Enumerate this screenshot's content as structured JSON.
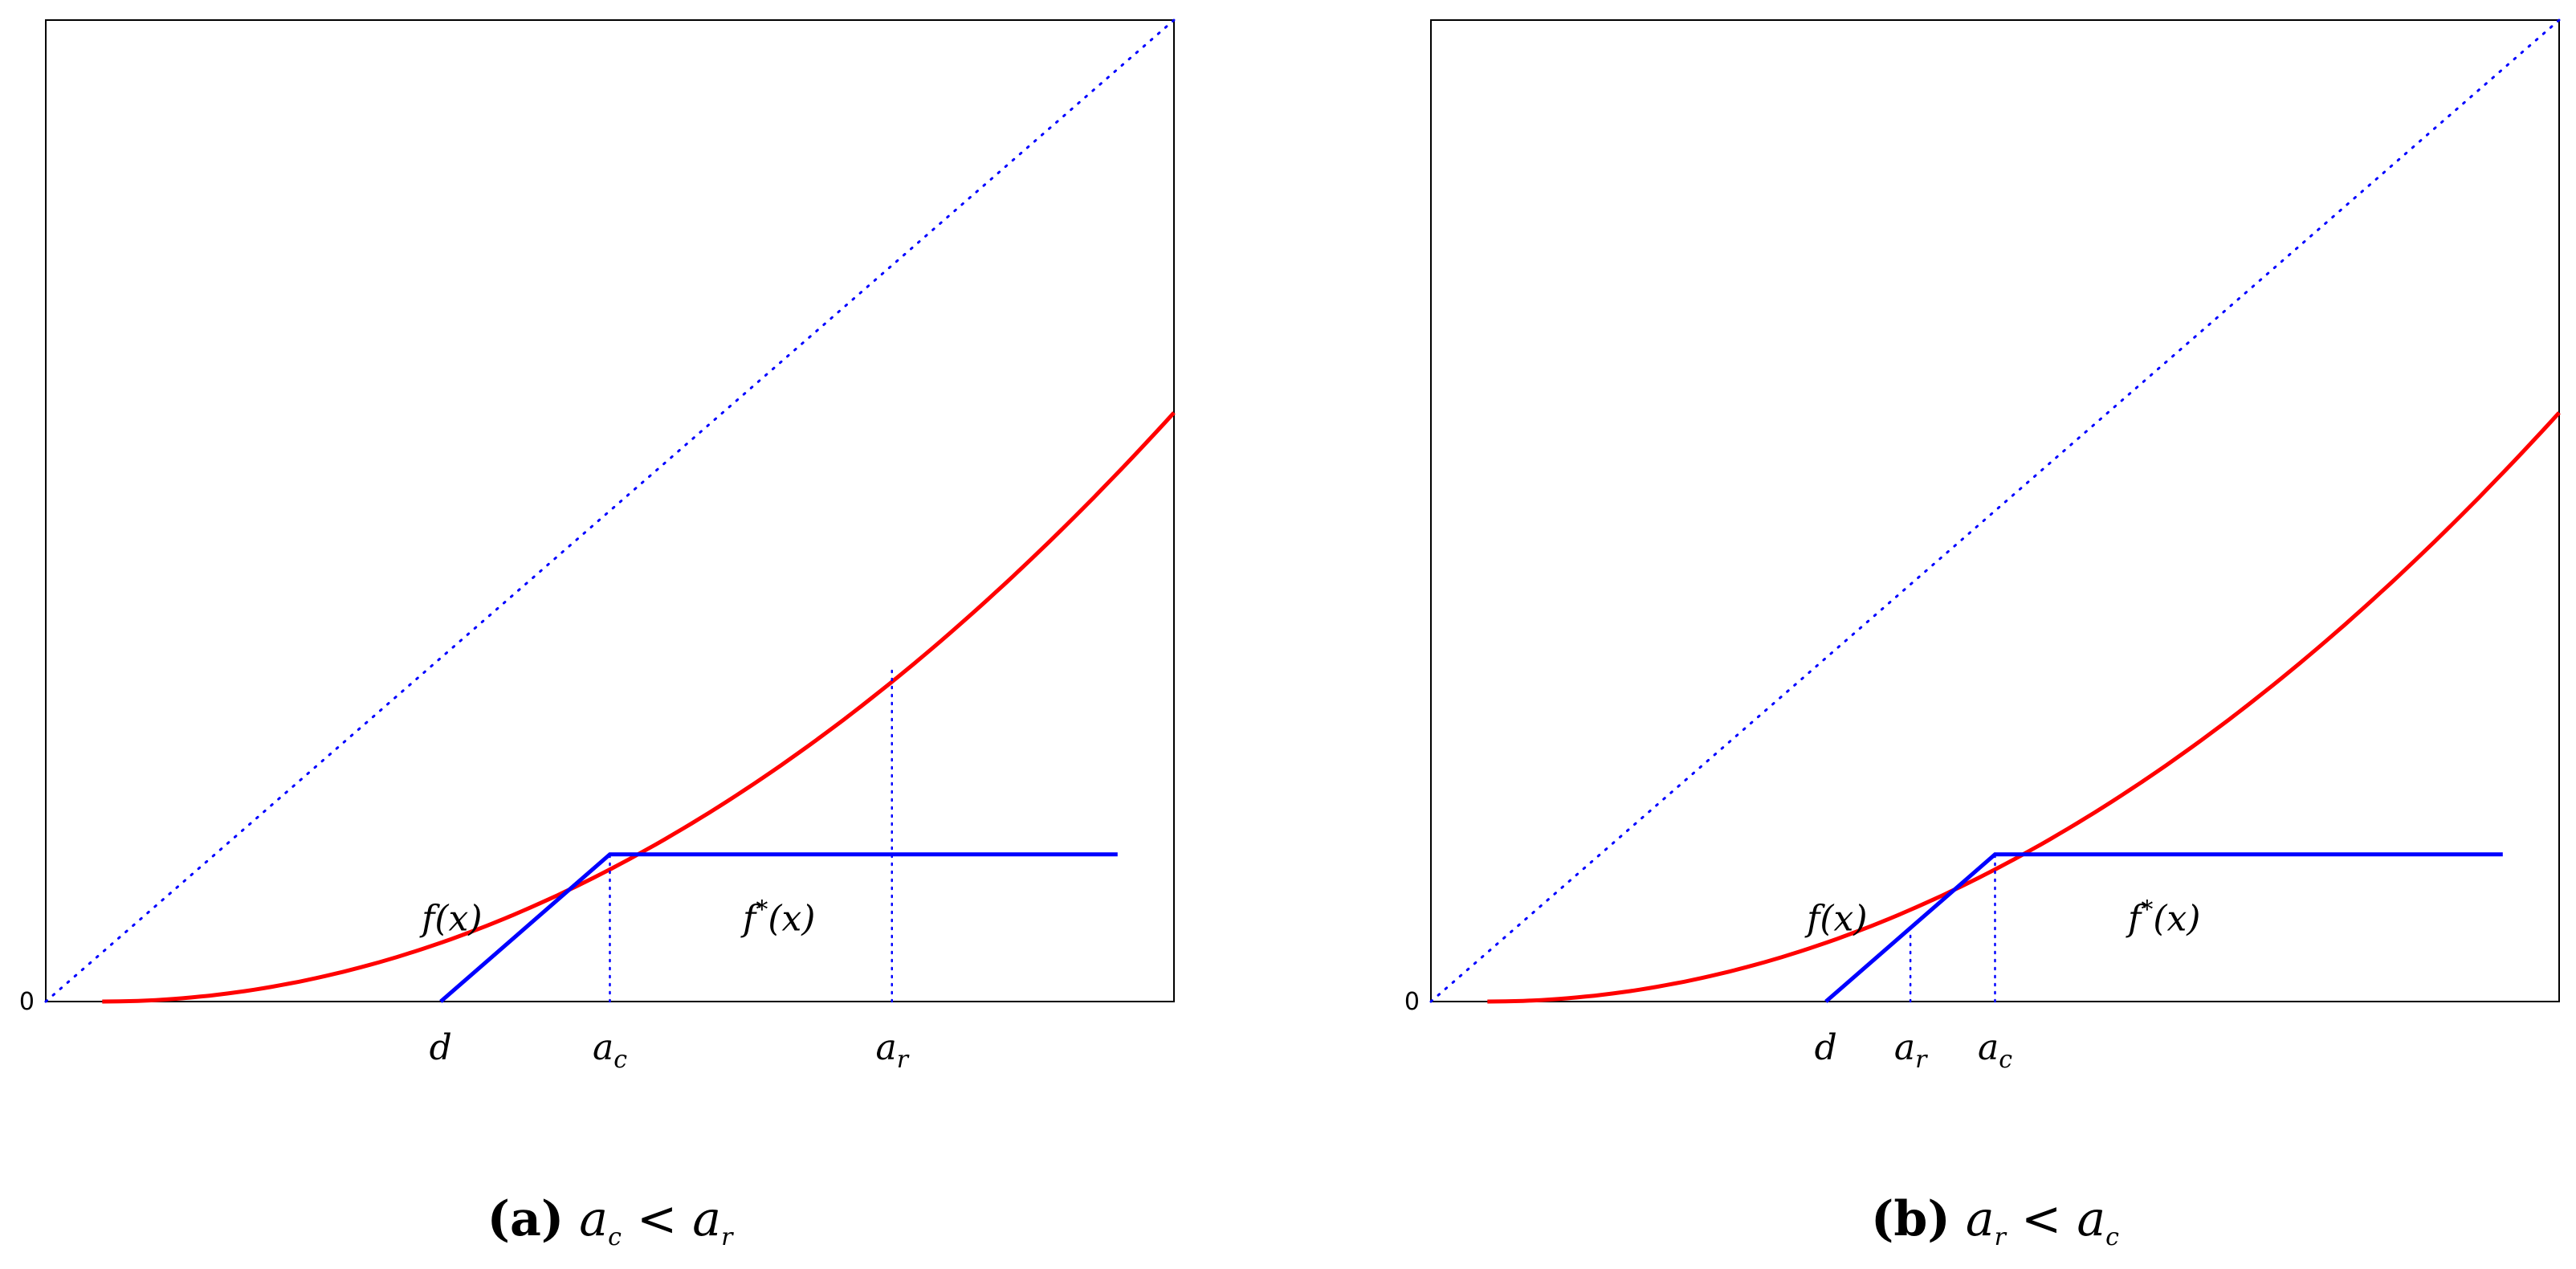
{
  "chart_data": [
    {
      "type": "line",
      "panel_label": "a",
      "caption": {
        "label": "(a)",
        "math_lhs": "a",
        "lhs_sub": "c",
        "relation": "<",
        "math_rhs": "a",
        "rhs_sub": "r"
      },
      "y_tick_labels": [
        "0"
      ],
      "xlim": [
        0,
        1
      ],
      "ylim": [
        0,
        1
      ],
      "grid": false,
      "series": [
        {
          "role": "identity",
          "style": "dotted",
          "color": "#0000ff",
          "x": [
            0,
            1
          ],
          "y": [
            0,
            1
          ]
        },
        {
          "role": "f",
          "style": "solid",
          "color": "#ff0000",
          "x": [
            0.05,
            0.1,
            0.2,
            0.3,
            0.4,
            0.5,
            0.6,
            0.7,
            0.8,
            0.9,
            1.0
          ],
          "y": [
            0,
            0.003,
            0.02,
            0.05,
            0.09,
            0.14,
            0.2,
            0.27,
            0.35,
            0.44,
            0.6
          ]
        },
        {
          "role": "f_star",
          "style": "solid",
          "color": "#0000ff",
          "x": [
            0.35,
            0.5,
            0.95
          ],
          "y": [
            0,
            0.15,
            0.15
          ]
        }
      ],
      "x_markers": [
        {
          "name": "d",
          "sub": "",
          "x": 0.35,
          "guide_to": null
        },
        {
          "name": "a",
          "sub": "c",
          "x": 0.5,
          "guide_to": 0.15
        },
        {
          "name": "a",
          "sub": "r",
          "x": 0.75,
          "guide_to": 0.34
        }
      ],
      "annotations": [
        {
          "text": "f(x)",
          "near_x": 0.36,
          "near_y": 0.12
        },
        {
          "text_base": "f",
          "text_sup": "*",
          "text_tail": "(x)",
          "near_x": 0.65,
          "near_y": 0.12
        }
      ]
    },
    {
      "type": "line",
      "panel_label": "b",
      "caption": {
        "label": "(b)",
        "math_lhs": "a",
        "lhs_sub": "r",
        "relation": "<",
        "math_rhs": "a",
        "rhs_sub": "c"
      },
      "y_tick_labels": [
        "0"
      ],
      "xlim": [
        0,
        1
      ],
      "ylim": [
        0,
        1
      ],
      "grid": false,
      "series": [
        {
          "role": "identity",
          "style": "dotted",
          "color": "#0000ff",
          "x": [
            0,
            1
          ],
          "y": [
            0,
            1
          ]
        },
        {
          "role": "f",
          "style": "solid",
          "color": "#ff0000",
          "x": [
            0.05,
            0.1,
            0.2,
            0.3,
            0.4,
            0.5,
            0.6,
            0.7,
            0.8,
            0.9,
            1.0
          ],
          "y": [
            0,
            0.003,
            0.02,
            0.05,
            0.09,
            0.14,
            0.2,
            0.27,
            0.35,
            0.44,
            0.6
          ]
        },
        {
          "role": "f_star",
          "style": "solid",
          "color": "#0000ff",
          "x": [
            0.35,
            0.5,
            0.95
          ],
          "y": [
            0,
            0.15,
            0.15
          ]
        }
      ],
      "x_markers": [
        {
          "name": "d",
          "sub": "",
          "x": 0.35,
          "guide_to": null
        },
        {
          "name": "a",
          "sub": "r",
          "x": 0.425,
          "guide_to": 0.075
        },
        {
          "name": "a",
          "sub": "c",
          "x": 0.5,
          "guide_to": 0.15
        }
      ],
      "annotations": [
        {
          "text": "f(x)",
          "near_x": 0.36,
          "near_y": 0.12
        },
        {
          "text_base": "f",
          "text_sup": "*",
          "text_tail": "(x)",
          "near_x": 0.65,
          "near_y": 0.12
        }
      ]
    }
  ]
}
